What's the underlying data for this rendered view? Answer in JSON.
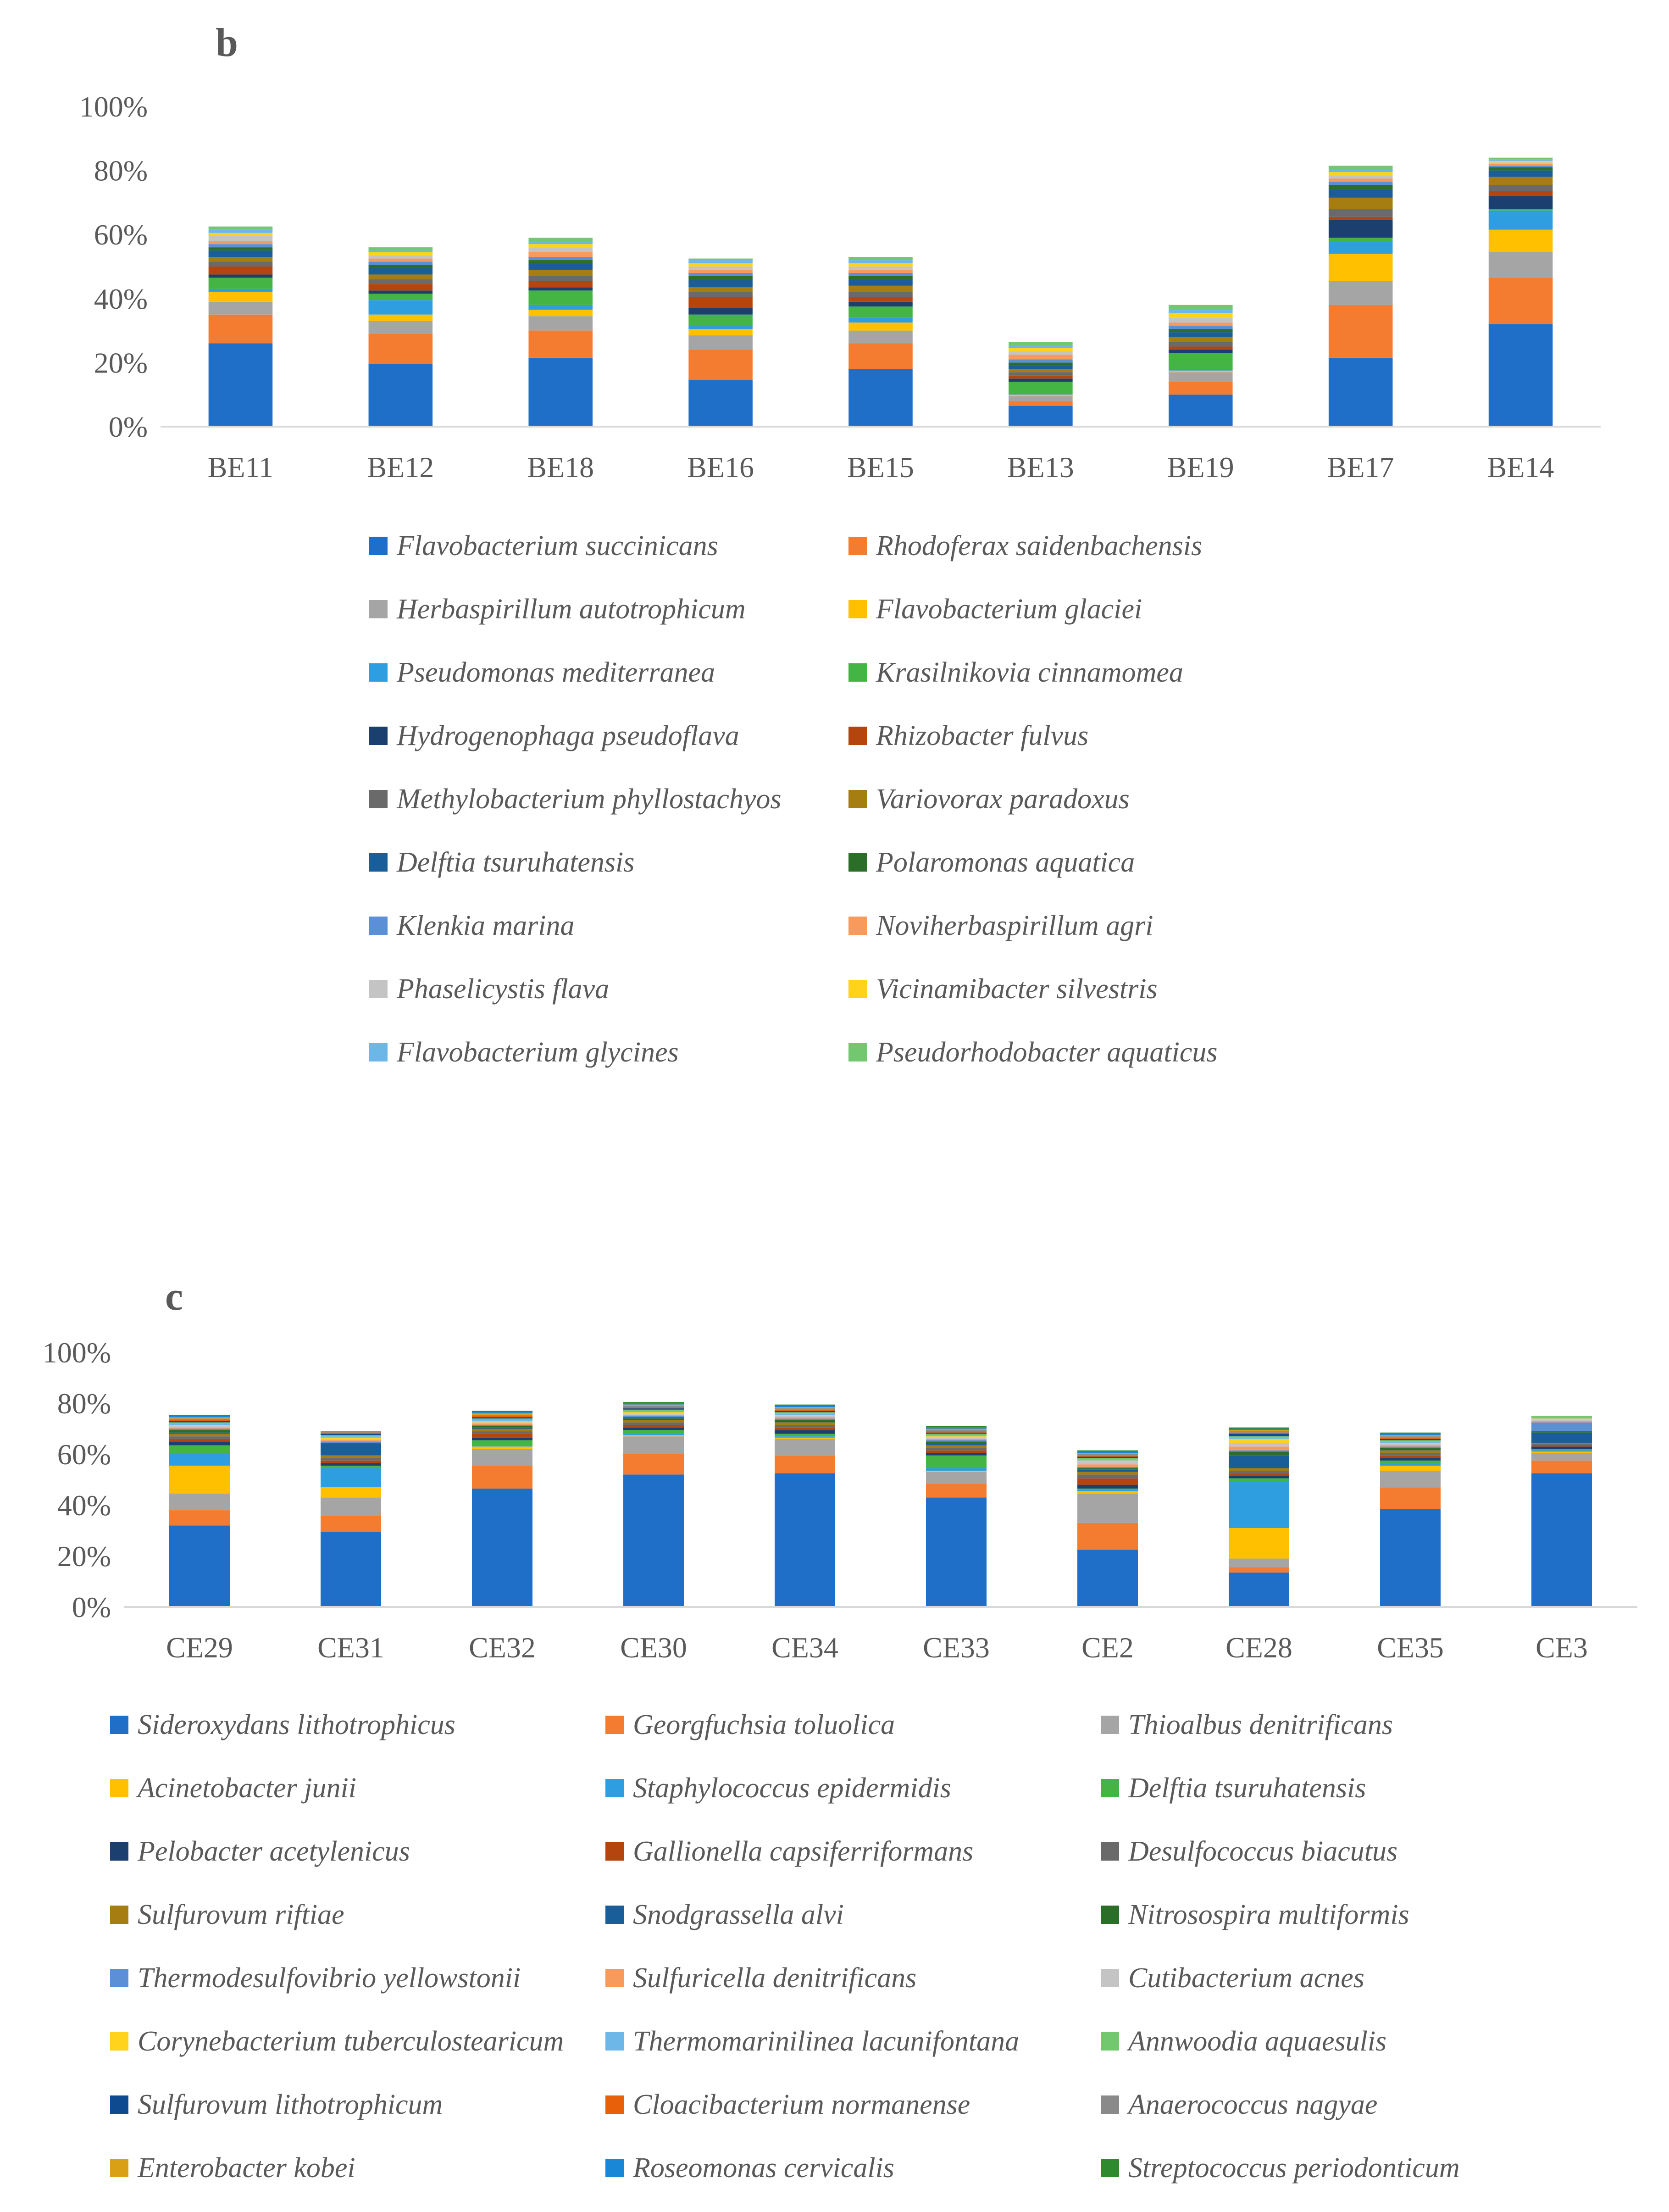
{
  "chart_data": [
    {
      "type": "bar",
      "stacked": true,
      "panel": "b",
      "ylim": [
        0,
        100
      ],
      "yticks": [
        "0%",
        "20%",
        "40%",
        "60%",
        "80%",
        "100%"
      ],
      "categories": [
        "BE11",
        "BE12",
        "BE18",
        "BE16",
        "BE15",
        "BE13",
        "BE19",
        "BE17",
        "BE14"
      ],
      "legend_position": "bottom",
      "series": [
        {
          "name": "Flavobacterium succinicans",
          "color": "#1f6fc8",
          "values": [
            26,
            19.5,
            21.5,
            14.5,
            18,
            6.5,
            10,
            21.5,
            32
          ]
        },
        {
          "name": "Rhodoferax saidenbachensis",
          "color": "#f47c30",
          "values": [
            9,
            9.5,
            8.5,
            9.5,
            8,
            1.5,
            4,
            16.5,
            14.5
          ]
        },
        {
          "name": "Herbaspirillum autotrophicum",
          "color": "#a5a5a5",
          "values": [
            4,
            4,
            4.5,
            4.5,
            4,
            1.5,
            3,
            7.5,
            8
          ]
        },
        {
          "name": "Flavobacterium glaciei",
          "color": "#ffc000",
          "values": [
            3,
            2,
            2,
            2,
            2.5,
            0.5,
            0.5,
            8.5,
            7
          ]
        },
        {
          "name": "Pseudomonas mediterranea",
          "color": "#2e9ee0",
          "values": [
            1,
            4.5,
            1.5,
            1,
            1.5,
            0.5,
            0.5,
            4,
            6
          ]
        },
        {
          "name": "Krasilnikovia cinnamomea",
          "color": "#44b444",
          "values": [
            3.5,
            2,
            4.5,
            3.5,
            3.5,
            3.5,
            5,
            1,
            0.5
          ]
        },
        {
          "name": "Hydrogenophaga pseudoflava",
          "color": "#1b3f6e",
          "values": [
            1,
            1,
            1,
            2,
            1.5,
            1,
            1,
            5.5,
            4
          ]
        },
        {
          "name": "Rhizobacter fulvus",
          "color": "#b5450f",
          "values": [
            2.5,
            2,
            2,
            3.5,
            1.5,
            1,
            1,
            1,
            1.5
          ]
        },
        {
          "name": "Methylobacterium phyllostachyos",
          "color": "#6a6a6a",
          "values": [
            1.5,
            1.5,
            1.5,
            1.5,
            1.5,
            1,
            1.5,
            2.5,
            2
          ]
        },
        {
          "name": "Variovorax paradoxus",
          "color": "#a67d10",
          "values": [
            1.5,
            1.5,
            2,
            1.5,
            2,
            1,
            1.5,
            3.5,
            2.5
          ]
        },
        {
          "name": "Delftia tsuruhatensis",
          "color": "#1a5e99",
          "values": [
            2,
            2,
            2,
            2.5,
            2,
            1,
            1.5,
            2.5,
            2
          ]
        },
        {
          "name": "Polaromonas aquatica",
          "color": "#2a6e28",
          "values": [
            1,
            1,
            1,
            1,
            1,
            1,
            1,
            1.5,
            1
          ]
        },
        {
          "name": "Klenkia marina",
          "color": "#5b8fd6",
          "values": [
            1,
            1,
            1,
            1,
            1,
            1,
            1,
            1,
            0.5
          ]
        },
        {
          "name": "Noviherbaspirillum agri",
          "color": "#f79a5e",
          "values": [
            1,
            1,
            1.5,
            1,
            1,
            1.5,
            1,
            1,
            0.5
          ]
        },
        {
          "name": "Phaselicystis flava",
          "color": "#c4c4c4",
          "values": [
            1.5,
            1,
            1.5,
            1,
            1,
            1,
            1.5,
            1,
            0.5
          ]
        },
        {
          "name": "Vicinamibacter silvestris",
          "color": "#ffd21c",
          "values": [
            1,
            1,
            1,
            1,
            1,
            1,
            1.5,
            1,
            0.5
          ]
        },
        {
          "name": "Flavobacterium glycines",
          "color": "#6cb7e8",
          "values": [
            1,
            0.5,
            1,
            1,
            1,
            1,
            1,
            1,
            0.5
          ]
        },
        {
          "name": "Pseudorhodobacter aquaticus",
          "color": "#73c76e",
          "values": [
            1,
            1,
            1,
            0.5,
            1,
            1,
            1.5,
            1,
            0.5
          ]
        }
      ]
    },
    {
      "type": "bar",
      "stacked": true,
      "panel": "c",
      "ylim": [
        0,
        100
      ],
      "yticks": [
        "0%",
        "20%",
        "40%",
        "60%",
        "80%",
        "100%"
      ],
      "categories": [
        "CE29",
        "CE31",
        "CE32",
        "CE30",
        "CE34",
        "CE33",
        "CE2",
        "CE28",
        "CE35",
        "CE3"
      ],
      "legend_position": "bottom",
      "series": [
        {
          "name": "Sideroxydans lithotrophicus",
          "color": "#1f6fc8",
          "values": [
            32,
            29.5,
            46.5,
            52,
            52.5,
            43,
            22.5,
            13.5,
            38.5,
            52.5
          ]
        },
        {
          "name": "Georgfuchsia toluolica",
          "color": "#f47c30",
          "values": [
            6,
            6.5,
            9,
            8,
            7,
            5.5,
            10.5,
            2,
            8.5,
            5
          ]
        },
        {
          "name": "Thioalbus denitrificans",
          "color": "#a5a5a5",
          "values": [
            6.5,
            7,
            6.5,
            7,
            6.5,
            4.5,
            11.5,
            3.5,
            6.5,
            3
          ]
        },
        {
          "name": "Acinetobacter junii",
          "color": "#ffc000",
          "values": [
            11,
            4,
            1,
            0.5,
            0.5,
            0.5,
            1,
            12,
            2,
            0.5
          ]
        },
        {
          "name": "Staphylococcus epidermidis",
          "color": "#2e9ee0",
          "values": [
            4.5,
            7.5,
            0.5,
            0.5,
            0.5,
            1,
            0.5,
            18.5,
            1,
            0.5
          ]
        },
        {
          "name": "Delftia tsuruhatensis",
          "color": "#44b444",
          "values": [
            3.5,
            1,
            2,
            1.5,
            1,
            5,
            0.5,
            1,
            1,
            0.5
          ]
        },
        {
          "name": "Pelobacter acetylenicus",
          "color": "#1b3f6e",
          "values": [
            1.5,
            1,
            1,
            1,
            1.5,
            1,
            1.5,
            1,
            1,
            1
          ]
        },
        {
          "name": "Gallionella capsiferriformans",
          "color": "#b5450f",
          "values": [
            1,
            1,
            1.5,
            1,
            1,
            1,
            2.5,
            1,
            1,
            0.5
          ]
        },
        {
          "name": "Desulfococcus biacutus",
          "color": "#6a6a6a",
          "values": [
            1,
            1,
            1,
            1,
            1,
            1,
            1.5,
            1,
            1,
            0.5
          ]
        },
        {
          "name": "Sulfurovum riftiae",
          "color": "#a67d10",
          "values": [
            1,
            1,
            1,
            1,
            1,
            1,
            1,
            1,
            1,
            0.5
          ]
        },
        {
          "name": "Snodgrassella alvi",
          "color": "#1a5e99",
          "values": [
            0.5,
            4.5,
            0.5,
            0.5,
            0.5,
            0.5,
            1,
            5,
            0.5,
            4
          ]
        },
        {
          "name": "Nitrosospira multiformis",
          "color": "#2a6e28",
          "values": [
            1,
            0.5,
            0.5,
            0.5,
            0.5,
            1,
            0.5,
            1.5,
            0.5,
            0.5
          ]
        },
        {
          "name": "Thermodesulfovibrio yellowstonii",
          "color": "#5b8fd6",
          "values": [
            0.5,
            0.5,
            0.5,
            0.5,
            0.5,
            0.5,
            0.5,
            0.5,
            0.5,
            3.5
          ]
        },
        {
          "name": "Sulfuricella denitrificans",
          "color": "#f79a5e",
          "values": [
            0.5,
            0.5,
            0.5,
            0.5,
            0.5,
            0.5,
            1,
            1.5,
            0.5,
            0.5
          ]
        },
        {
          "name": "Cutibacterium acnes",
          "color": "#c4c4c4",
          "values": [
            0.5,
            0.5,
            0.5,
            0.5,
            0.5,
            0.5,
            1,
            1.5,
            0.5,
            0.5
          ]
        },
        {
          "name": "Corynebacterium tuberculostearicum",
          "color": "#ffd21c",
          "values": [
            0.5,
            0.5,
            0.5,
            0.5,
            0.5,
            0.5,
            0.5,
            1.5,
            0.5,
            0.5
          ]
        },
        {
          "name": "Thermomarinilinea lacunifontana",
          "color": "#6cb7e8",
          "values": [
            0.5,
            0.5,
            0.5,
            0.5,
            0.5,
            0.5,
            0.5,
            0.5,
            0.5,
            0.5
          ]
        },
        {
          "name": "Annwoodia aquaesulis",
          "color": "#73c76e",
          "values": [
            0.5,
            0.5,
            0.5,
            0.5,
            0.5,
            0.5,
            0.5,
            0.5,
            0.5,
            0.5
          ]
        },
        {
          "name": "Sulfurovum lithotrophicum",
          "color": "#0d4a8f",
          "values": [
            0.5,
            0.5,
            0.5,
            0.5,
            0.5,
            0.5,
            0.5,
            1,
            0.5,
            0
          ]
        },
        {
          "name": "Cloacibacterium normanense",
          "color": "#e8600a",
          "values": [
            0.5,
            0.5,
            0.5,
            0.5,
            0.5,
            0.5,
            0.5,
            0.5,
            0.5,
            0
          ]
        },
        {
          "name": "Anaerococcus nagyae",
          "color": "#8a8a8a",
          "values": [
            0.5,
            0.5,
            0.5,
            0.5,
            0.5,
            0.5,
            0.5,
            0.5,
            0.5,
            0
          ]
        },
        {
          "name": "Enterobacter kobei",
          "color": "#d9a015",
          "values": [
            0.5,
            0,
            0.5,
            0.5,
            0.5,
            0.5,
            0.5,
            0.5,
            0.5,
            0
          ]
        },
        {
          "name": "Roseomonas cervicalis",
          "color": "#1a86d6",
          "values": [
            0.5,
            0,
            0.5,
            0.5,
            0.5,
            0.5,
            0.5,
            0.5,
            0.5,
            0
          ]
        },
        {
          "name": "Streptococcus periodonticum",
          "color": "#2f8a2f",
          "values": [
            0.5,
            0,
            0.5,
            0.5,
            0.5,
            0.5,
            0.5,
            0.5,
            0.5,
            0
          ]
        }
      ]
    }
  ]
}
